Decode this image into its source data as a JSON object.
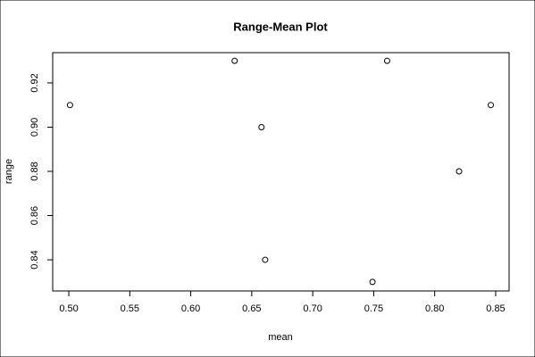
{
  "chart_data": {
    "type": "scatter",
    "title": "Range-Mean Plot",
    "x_label": "mean",
    "y_label": "range",
    "x": [
      0.501,
      0.636,
      0.658,
      0.661,
      0.749,
      0.761,
      0.82,
      0.846
    ],
    "values": [
      0.91,
      0.93,
      0.9,
      0.84,
      0.83,
      0.93,
      0.88,
      0.91
    ],
    "color": "#000000",
    "xlim": [
      0.4868,
      0.861
    ],
    "xticks": [
      {
        "value": 0.5,
        "label": "0.50"
      },
      0.55,
      {
        "value": 0.6,
        "label": "0.60"
      },
      0.65,
      {
        "value": 0.7,
        "label": "0.70"
      },
      0.75,
      {
        "value": 0.8,
        "label": "0.80"
      },
      0.85
    ],
    "ylim": [
      0.8259,
      0.9337
    ],
    "yticks": [
      0.84,
      0.86,
      0.88,
      {
        "value": 0.9,
        "label": "0.90"
      },
      0.92
    ]
  }
}
